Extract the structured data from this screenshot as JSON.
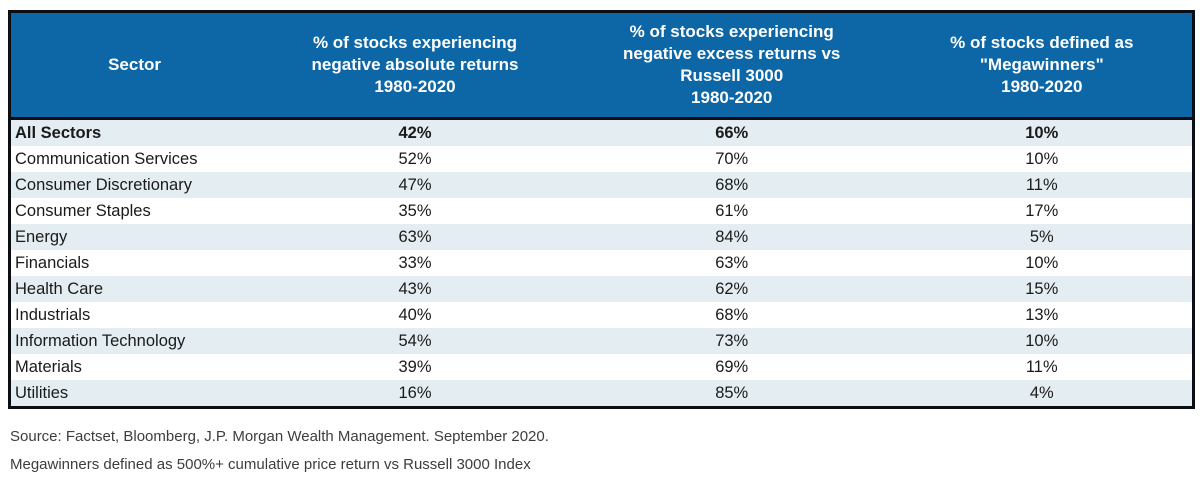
{
  "colors": {
    "header_bg": "#0d67a6",
    "header_text": "#ffffff",
    "row_alt_bg": "#e3edf2",
    "row_bg": "#ffffff",
    "border": "#0b0f14",
    "body_text": "#1a1a1a",
    "footnote_text": "#3d3d3d"
  },
  "table": {
    "columns": [
      {
        "id": "sector",
        "label_lines": [
          "Sector"
        ]
      },
      {
        "id": "negative_absolute_returns",
        "label_lines": [
          "% of stocks experiencing",
          "negative absolute returns",
          "1980-2020"
        ]
      },
      {
        "id": "negative_excess_returns",
        "label_lines": [
          "% of stocks experiencing",
          "negative excess returns vs",
          "Russell 3000",
          "1980-2020"
        ]
      },
      {
        "id": "megawinners",
        "label_lines": [
          "% of stocks defined as",
          "\"Megawinners\"",
          "1980-2020"
        ]
      }
    ],
    "rows": [
      {
        "sector": "All Sectors",
        "values": [
          "42%",
          "66%",
          "10%"
        ],
        "bold": true
      },
      {
        "sector": "Communication Services",
        "values": [
          "52%",
          "70%",
          "10%"
        ],
        "bold": false
      },
      {
        "sector": "Consumer Discretionary",
        "values": [
          "47%",
          "68%",
          "11%"
        ],
        "bold": false
      },
      {
        "sector": "Consumer Staples",
        "values": [
          "35%",
          "61%",
          "17%"
        ],
        "bold": false
      },
      {
        "sector": "Energy",
        "values": [
          "63%",
          "84%",
          "5%"
        ],
        "bold": false
      },
      {
        "sector": "Financials",
        "values": [
          "33%",
          "63%",
          "10%"
        ],
        "bold": false
      },
      {
        "sector": "Health Care",
        "values": [
          "43%",
          "62%",
          "15%"
        ],
        "bold": false
      },
      {
        "sector": "Industrials",
        "values": [
          "40%",
          "68%",
          "13%"
        ],
        "bold": false
      },
      {
        "sector": "Information Technology",
        "values": [
          "54%",
          "73%",
          "10%"
        ],
        "bold": false
      },
      {
        "sector": "Materials",
        "values": [
          "39%",
          "69%",
          "11%"
        ],
        "bold": false
      },
      {
        "sector": "Utilities",
        "values": [
          "16%",
          "85%",
          "4%"
        ],
        "bold": false
      }
    ]
  },
  "footnotes": {
    "source": "Source: Factset, Bloomberg, J.P. Morgan Wealth Management. September 2020.",
    "note": "Megawinners defined as 500%+ cumulative price return vs Russell 3000 Index"
  },
  "chart_data": {
    "type": "table",
    "title": "",
    "columns": [
      "Sector",
      "% of stocks experiencing negative absolute returns 1980-2020",
      "% of stocks experiencing negative excess returns vs Russell 3000 1980-2020",
      "% of stocks defined as \"Megawinners\" 1980-2020"
    ],
    "units": "percent",
    "rows": [
      [
        "All Sectors",
        42,
        66,
        10
      ],
      [
        "Communication Services",
        52,
        70,
        10
      ],
      [
        "Consumer Discretionary",
        47,
        68,
        11
      ],
      [
        "Consumer Staples",
        35,
        61,
        17
      ],
      [
        "Energy",
        63,
        84,
        5
      ],
      [
        "Financials",
        33,
        63,
        10
      ],
      [
        "Health Care",
        43,
        62,
        15
      ],
      [
        "Industrials",
        40,
        68,
        13
      ],
      [
        "Information Technology",
        54,
        73,
        10
      ],
      [
        "Materials",
        39,
        69,
        11
      ],
      [
        "Utilities",
        16,
        85,
        4
      ]
    ],
    "source": "Source: Factset, Bloomberg, J.P. Morgan Wealth Management. September 2020.",
    "note": "Megawinners defined as 500%+ cumulative price return vs Russell 3000 Index"
  }
}
